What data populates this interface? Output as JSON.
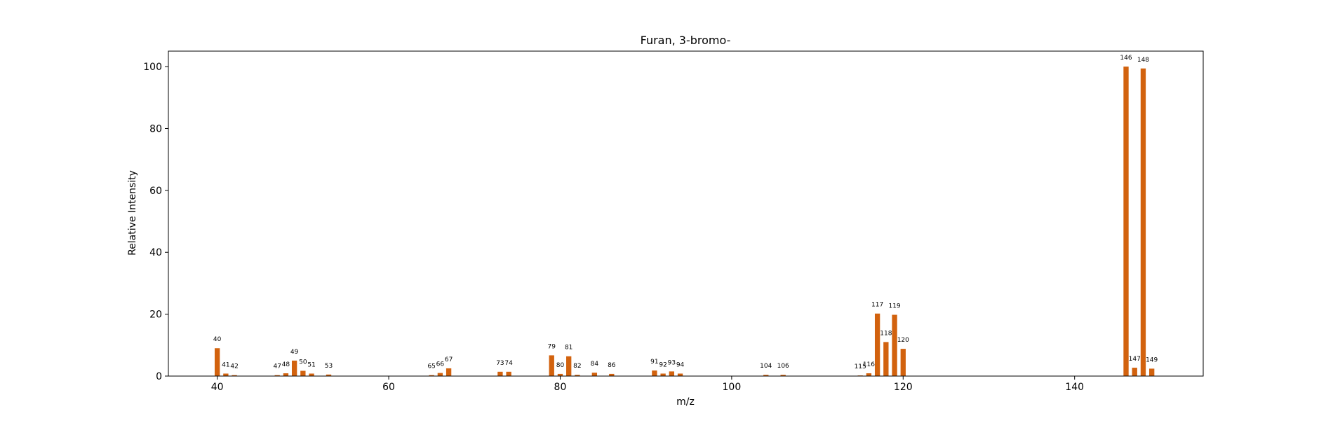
{
  "chart_data": {
    "type": "bar",
    "title": "Furan, 3-bromo-",
    "xlabel": "m/z",
    "ylabel": "Relative Intensity",
    "xlim": [
      34.3,
      155.0
    ],
    "ylim": [
      0,
      105
    ],
    "xticks": [
      40,
      60,
      80,
      100,
      120,
      140
    ],
    "yticks": [
      0,
      20,
      40,
      60,
      80,
      100
    ],
    "grid": false,
    "legend": "none",
    "bar_color": "#d2620e",
    "bar_width": 0.6,
    "peaks": [
      {
        "x": 40,
        "y": 9.0,
        "label": "40"
      },
      {
        "x": 41,
        "y": 0.8,
        "label": "41"
      },
      {
        "x": 42,
        "y": 0.3,
        "label": "42"
      },
      {
        "x": 47,
        "y": 0.3,
        "label": "47"
      },
      {
        "x": 48,
        "y": 0.9,
        "label": "48"
      },
      {
        "x": 49,
        "y": 5.0,
        "label": "49"
      },
      {
        "x": 50,
        "y": 1.7,
        "label": "50"
      },
      {
        "x": 51,
        "y": 0.8,
        "label": "51"
      },
      {
        "x": 53,
        "y": 0.5,
        "label": "53"
      },
      {
        "x": 65,
        "y": 0.3,
        "label": "65"
      },
      {
        "x": 66,
        "y": 1.0,
        "label": "66"
      },
      {
        "x": 67,
        "y": 2.5,
        "label": "67"
      },
      {
        "x": 73,
        "y": 1.4,
        "label": "73"
      },
      {
        "x": 74,
        "y": 1.4,
        "label": "74"
      },
      {
        "x": 79,
        "y": 6.7,
        "label": "79"
      },
      {
        "x": 80,
        "y": 0.7,
        "label": "80"
      },
      {
        "x": 81,
        "y": 6.4,
        "label": "81"
      },
      {
        "x": 82,
        "y": 0.4,
        "label": "82"
      },
      {
        "x": 84,
        "y": 1.1,
        "label": "84"
      },
      {
        "x": 86,
        "y": 0.7,
        "label": "86"
      },
      {
        "x": 91,
        "y": 1.8,
        "label": "91"
      },
      {
        "x": 92,
        "y": 0.8,
        "label": "92"
      },
      {
        "x": 93,
        "y": 1.5,
        "label": "93"
      },
      {
        "x": 94,
        "y": 0.8,
        "label": "94"
      },
      {
        "x": 104,
        "y": 0.4,
        "label": "104"
      },
      {
        "x": 106,
        "y": 0.4,
        "label": "106"
      },
      {
        "x": 115,
        "y": 0.2,
        "label": "115"
      },
      {
        "x": 116,
        "y": 0.9,
        "label": "116"
      },
      {
        "x": 117,
        "y": 20.2,
        "label": "117"
      },
      {
        "x": 118,
        "y": 11.0,
        "label": "118"
      },
      {
        "x": 119,
        "y": 19.8,
        "label": "119"
      },
      {
        "x": 120,
        "y": 8.8,
        "label": "120"
      },
      {
        "x": 146,
        "y": 100.0,
        "label": "146"
      },
      {
        "x": 147,
        "y": 2.7,
        "label": "147"
      },
      {
        "x": 148,
        "y": 99.4,
        "label": "148"
      },
      {
        "x": 149,
        "y": 2.4,
        "label": "149"
      }
    ]
  }
}
